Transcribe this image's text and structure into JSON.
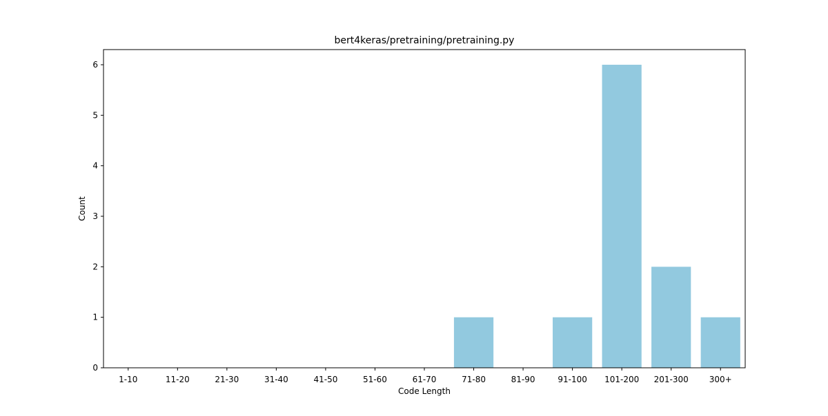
{
  "chart_data": {
    "type": "bar",
    "title": "bert4keras/pretraining/pretraining.py",
    "xlabel": "Code Length",
    "ylabel": "Count",
    "categories": [
      "1-10",
      "11-20",
      "21-30",
      "31-40",
      "41-50",
      "51-60",
      "61-70",
      "71-80",
      "81-90",
      "91-100",
      "101-200",
      "201-300",
      "300+"
    ],
    "values": [
      0,
      0,
      0,
      0,
      0,
      0,
      0,
      1,
      0,
      1,
      6,
      2,
      1
    ],
    "ylim": [
      0,
      6.3
    ],
    "yticks": [
      0,
      1,
      2,
      3,
      4,
      5,
      6
    ],
    "bar_color": "#92c9df",
    "grid": false,
    "legend": "none"
  }
}
